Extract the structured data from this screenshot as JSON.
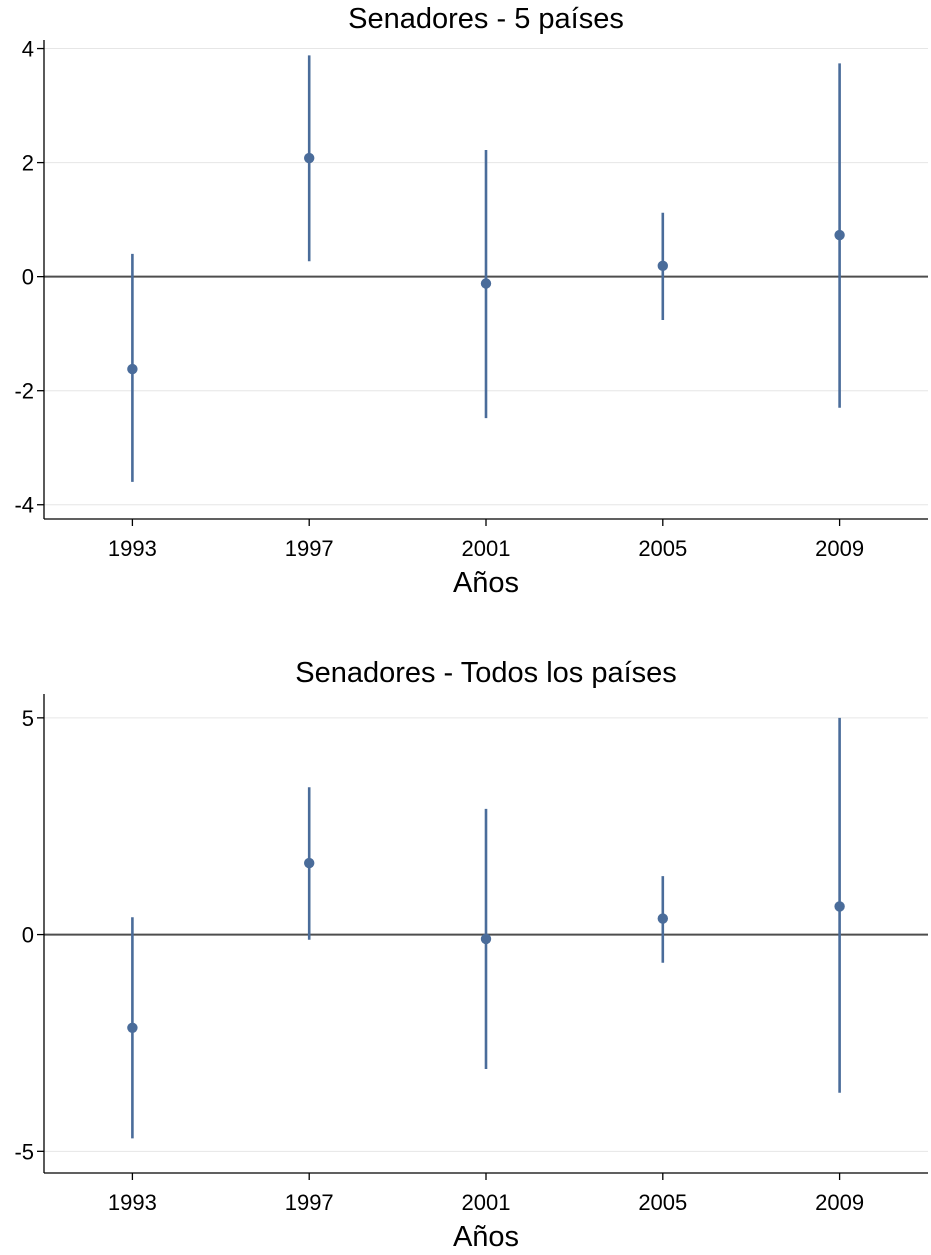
{
  "chart_data": [
    {
      "type": "scatter",
      "title": "Senadores - 5 países",
      "xlabel": "Años",
      "ylabel": "",
      "categories": [
        "1993",
        "1997",
        "2001",
        "2005",
        "2009"
      ],
      "yticks": [
        "-4",
        "-2",
        "0",
        "2",
        "4"
      ],
      "ylim": [
        -4.25,
        4.15
      ],
      "reference_line": 0,
      "grid": true,
      "color": "#4a6c9a",
      "series": [
        {
          "estimates": [
            -1.62,
            2.08,
            -0.12,
            0.19,
            0.73
          ],
          "ci_low": [
            -3.6,
            0.27,
            -2.48,
            -0.76,
            -2.3
          ],
          "ci_high": [
            0.4,
            3.88,
            2.22,
            1.12,
            3.74
          ]
        }
      ]
    },
    {
      "type": "scatter",
      "title": "Senadores - Todos los países",
      "xlabel": "Años",
      "ylabel": "",
      "categories": [
        "1993",
        "1997",
        "2001",
        "2005",
        "2009"
      ],
      "yticks": [
        "-5",
        "0",
        "5"
      ],
      "ylim": [
        -5.5,
        5.55
      ],
      "reference_line": 0,
      "grid": true,
      "color": "#4a6c9a",
      "series": [
        {
          "estimates": [
            -2.15,
            1.65,
            -0.1,
            0.37,
            0.65
          ],
          "ci_low": [
            -4.7,
            -0.12,
            -3.1,
            -0.65,
            -3.65
          ],
          "ci_high": [
            0.4,
            3.4,
            2.9,
            1.35,
            5.0
          ]
        }
      ]
    }
  ]
}
